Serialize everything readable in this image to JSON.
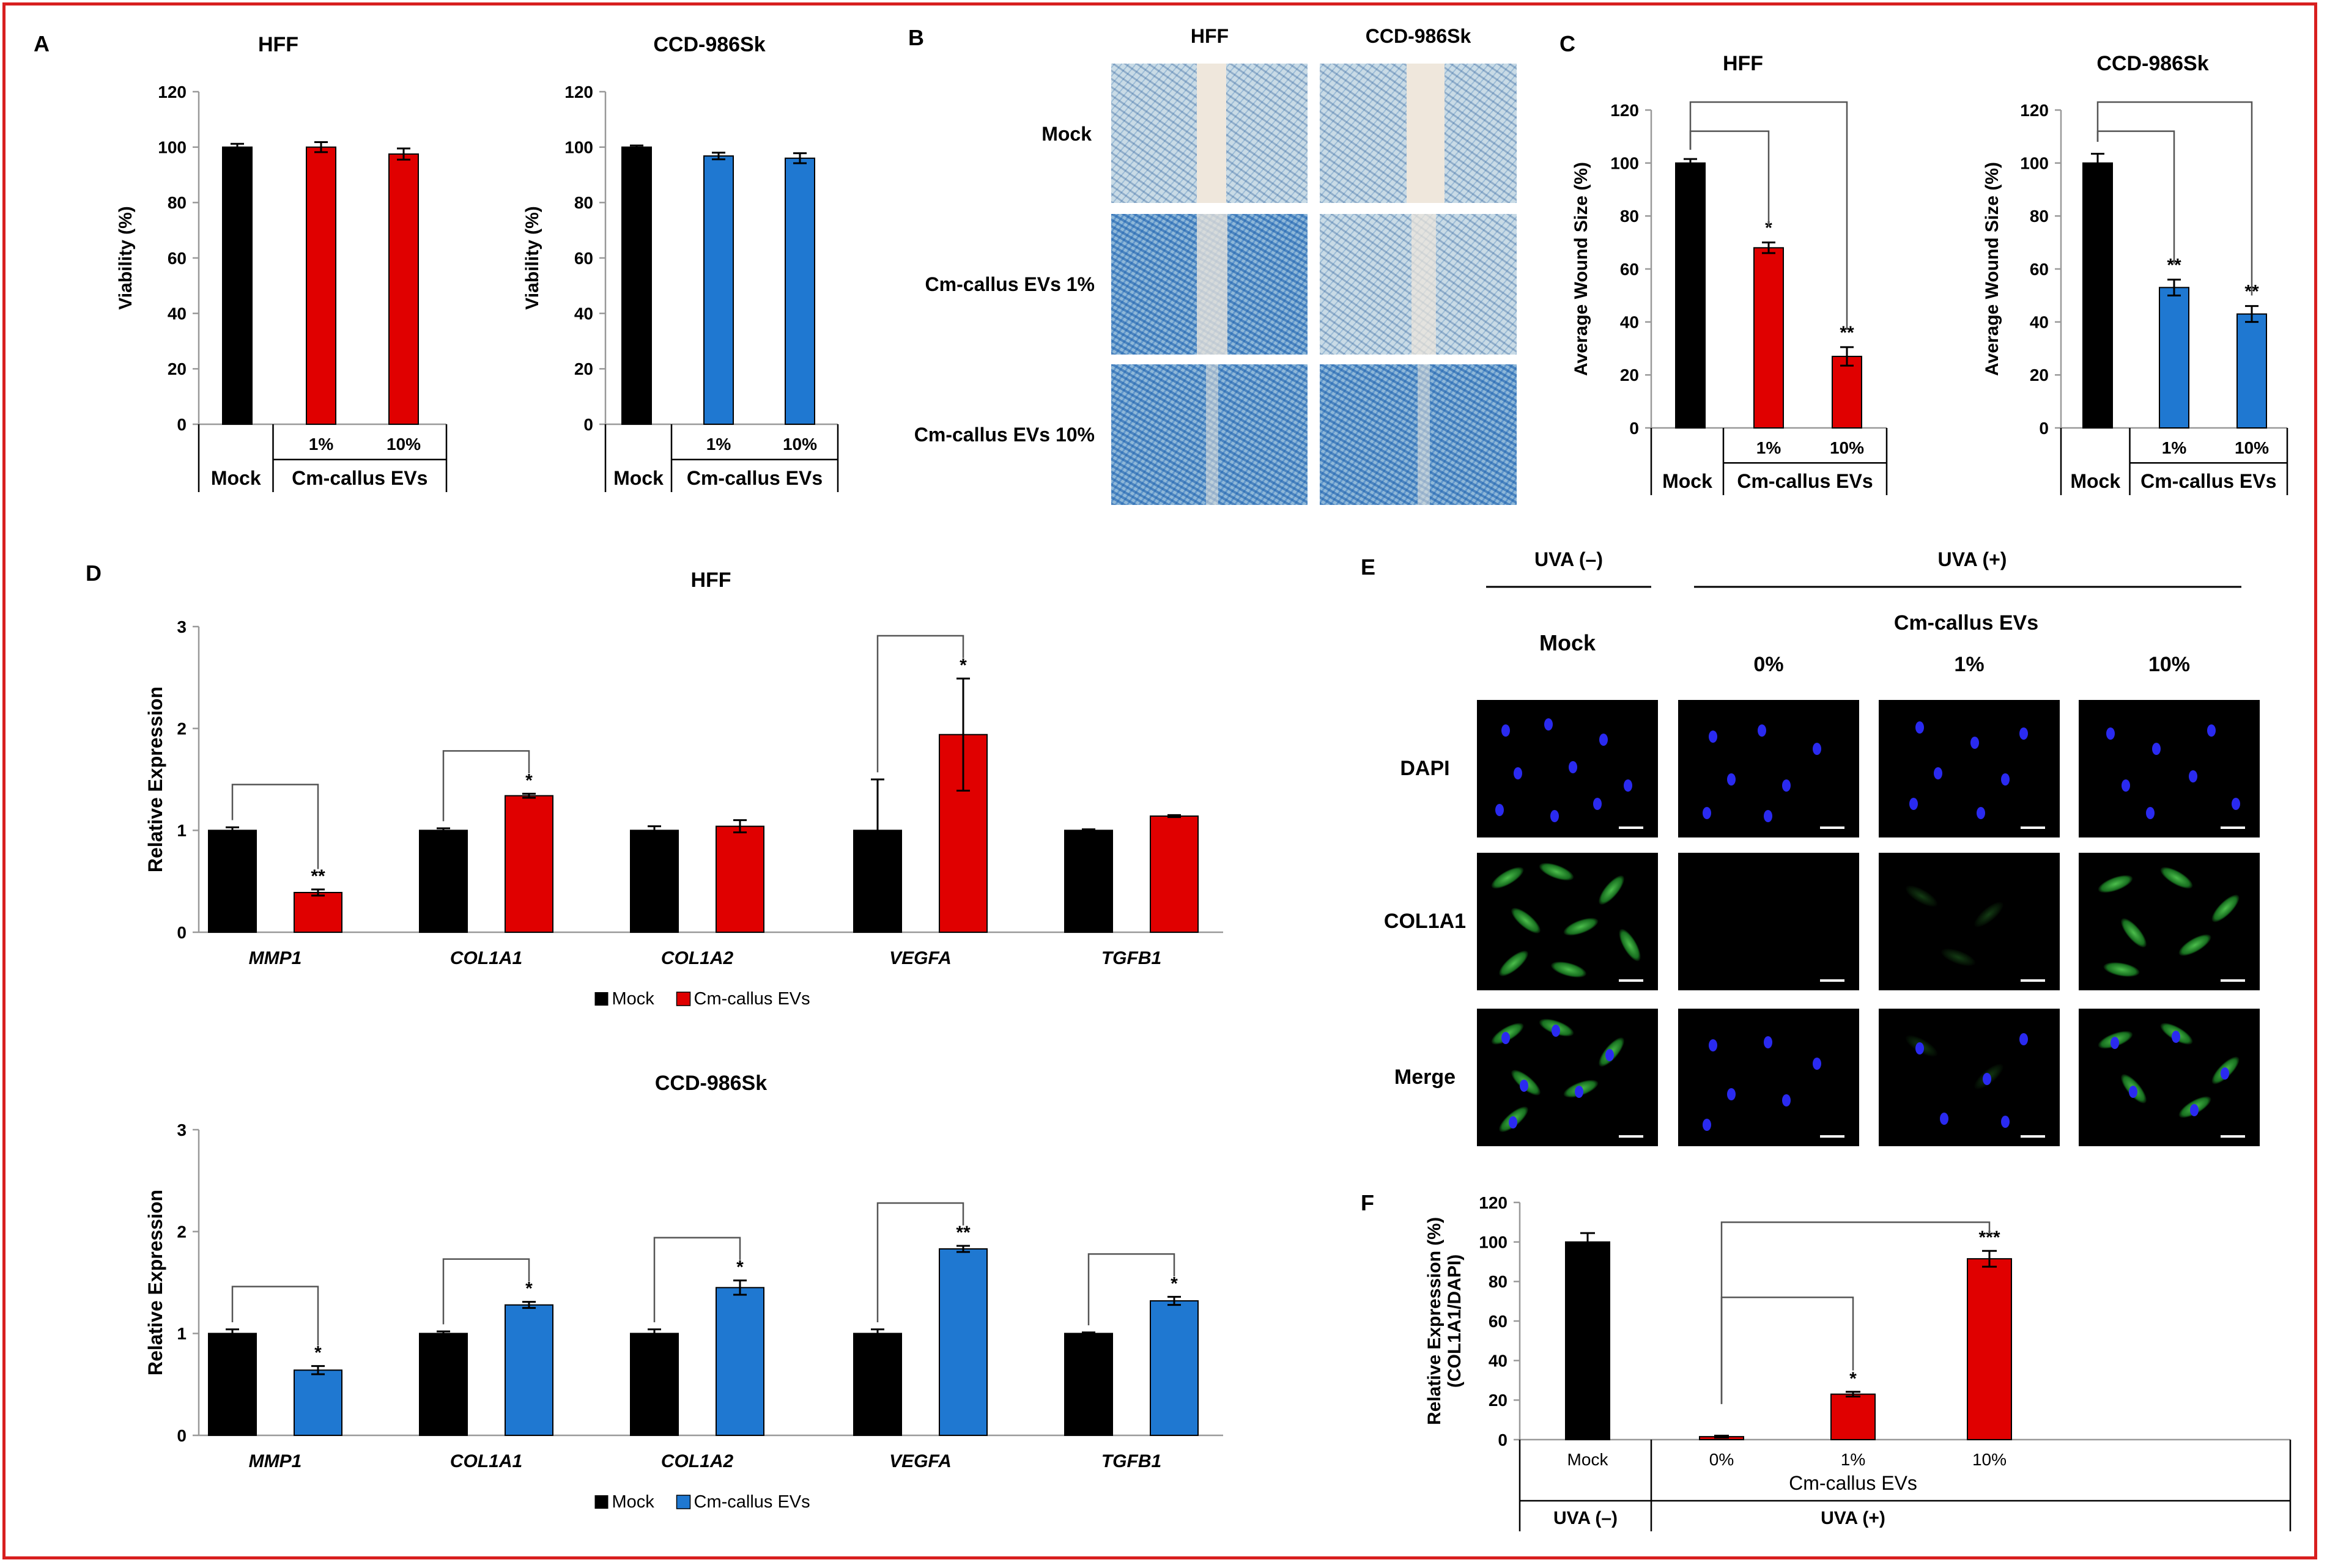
{
  "panel_labels": {
    "A": "A",
    "B": "B",
    "C": "C",
    "D": "D",
    "E": "E",
    "F": "F"
  },
  "colors": {
    "mock": "#000000",
    "hff": "#e00000",
    "ccd": "#1f78d1",
    "frame": "#d81f1f"
  },
  "group_labels": {
    "mock": "Mock",
    "evs": "Cm-callus EVs",
    "pct_1": "1%",
    "pct_10": "10%",
    "pct_0": "0%"
  },
  "panel_b": {
    "col_titles": [
      "HFF",
      "CCD-986Sk"
    ],
    "row_labels": [
      "Mock",
      "Cm-callus EVs 1%",
      "Cm-callus EVs 10%"
    ]
  },
  "panel_e": {
    "uva_minus": "UVA (–)",
    "uva_plus": "UVA (+)",
    "evs_label": "Cm-callus EVs",
    "col_labels": [
      "Mock",
      "0%",
      "1%",
      "10%"
    ],
    "row_labels": [
      "DAPI",
      "COL1A1",
      "Merge"
    ]
  },
  "chart_data": [
    {
      "id": "A-HFF",
      "type": "bar",
      "title": "HFF",
      "ylabel": "Viability (%)",
      "ylim": [
        0,
        120
      ],
      "yticks": [
        0,
        20,
        40,
        60,
        80,
        100,
        120
      ],
      "categories": [
        "Mock",
        "1%",
        "10%"
      ],
      "values": [
        100,
        100,
        97.5
      ],
      "errors": [
        1.2,
        1.8,
        2.0
      ],
      "group_label": "Cm-callus EVs",
      "significance": [
        "",
        "",
        ""
      ]
    },
    {
      "id": "A-CCD",
      "type": "bar",
      "title": "CCD-986Sk",
      "ylabel": "Viability (%)",
      "ylim": [
        0,
        120
      ],
      "yticks": [
        0,
        20,
        40,
        60,
        80,
        100,
        120
      ],
      "categories": [
        "Mock",
        "1%",
        "10%"
      ],
      "values": [
        100,
        96.8,
        96.0
      ],
      "errors": [
        0.6,
        1.2,
        1.8
      ],
      "group_label": "Cm-callus EVs",
      "significance": [
        "",
        "",
        ""
      ]
    },
    {
      "id": "C-HFF",
      "type": "bar",
      "title": "HFF",
      "ylabel": "Average Wound Size (%)",
      "ylim": [
        0,
        120
      ],
      "yticks": [
        0,
        20,
        40,
        60,
        80,
        100,
        120
      ],
      "categories": [
        "Mock",
        "1%",
        "10%"
      ],
      "values": [
        100,
        68,
        27
      ],
      "errors": [
        1.5,
        2.0,
        3.5
      ],
      "group_label": "Cm-callus EVs",
      "significance": [
        "",
        "*",
        "**"
      ]
    },
    {
      "id": "C-CCD",
      "type": "bar",
      "title": "CCD-986Sk",
      "ylabel": "Average Wound Size (%)",
      "ylim": [
        0,
        120
      ],
      "yticks": [
        0,
        20,
        40,
        60,
        80,
        100,
        120
      ],
      "categories": [
        "Mock",
        "1%",
        "10%"
      ],
      "values": [
        100,
        53,
        43
      ],
      "errors": [
        3.5,
        3.0,
        3.0
      ],
      "group_label": "Cm-callus EVs",
      "significance": [
        "",
        "**",
        "**"
      ]
    },
    {
      "id": "D-HFF",
      "type": "bar",
      "title": "HFF",
      "ylabel": "Relative Expression",
      "ylim": [
        0,
        3
      ],
      "yticks": [
        0,
        1,
        2,
        3
      ],
      "categories": [
        "MMP1",
        "COL1A1",
        "COL1A2",
        "VEGFA",
        "TGFB1"
      ],
      "series": [
        {
          "name": "Mock",
          "values": [
            1.0,
            1.0,
            1.0,
            1.0,
            1.0
          ],
          "errors": [
            0.03,
            0.02,
            0.04,
            0.5,
            0.01
          ]
        },
        {
          "name": "Cm-callus EVs",
          "values": [
            0.39,
            1.34,
            1.04,
            1.94,
            1.14
          ],
          "errors": [
            0.03,
            0.02,
            0.06,
            0.55,
            0.01
          ]
        }
      ],
      "significance": [
        "**",
        "*",
        "",
        "*",
        ""
      ],
      "legend": [
        "Mock",
        "Cm-callus EVs"
      ]
    },
    {
      "id": "D-CCD",
      "type": "bar",
      "title": "CCD-986Sk",
      "ylabel": "Relative Expression",
      "ylim": [
        0,
        3
      ],
      "yticks": [
        0,
        1,
        2,
        3
      ],
      "categories": [
        "MMP1",
        "COL1A1",
        "COL1A2",
        "VEGFA",
        "TGFB1"
      ],
      "series": [
        {
          "name": "Mock",
          "values": [
            1.0,
            1.0,
            1.0,
            1.0,
            1.0
          ],
          "errors": [
            0.04,
            0.02,
            0.04,
            0.04,
            0.01
          ]
        },
        {
          "name": "Cm-callus EVs",
          "values": [
            0.64,
            1.28,
            1.45,
            1.83,
            1.32
          ],
          "errors": [
            0.04,
            0.03,
            0.07,
            0.03,
            0.04
          ]
        }
      ],
      "significance": [
        "*",
        "*",
        "*",
        "**",
        "*"
      ],
      "legend": [
        "Mock",
        "Cm-callus EVs"
      ]
    },
    {
      "id": "F",
      "type": "bar",
      "title": "",
      "ylabel": "Relative Expression (%) (COL1A1/DAPI)",
      "ylim": [
        0,
        120
      ],
      "yticks": [
        0,
        20,
        40,
        60,
        80,
        100,
        120
      ],
      "categories": [
        "Mock",
        "0%",
        "1%",
        "10%"
      ],
      "values": [
        100,
        1.5,
        23,
        91.5
      ],
      "errors": [
        4.5,
        0.5,
        1.2,
        4.0
      ],
      "xlabel": "Cm-callus EVs",
      "group_labels": [
        "UVA (–)",
        "UVA (+)"
      ],
      "significance": [
        "",
        "",
        "*",
        "***"
      ]
    }
  ]
}
